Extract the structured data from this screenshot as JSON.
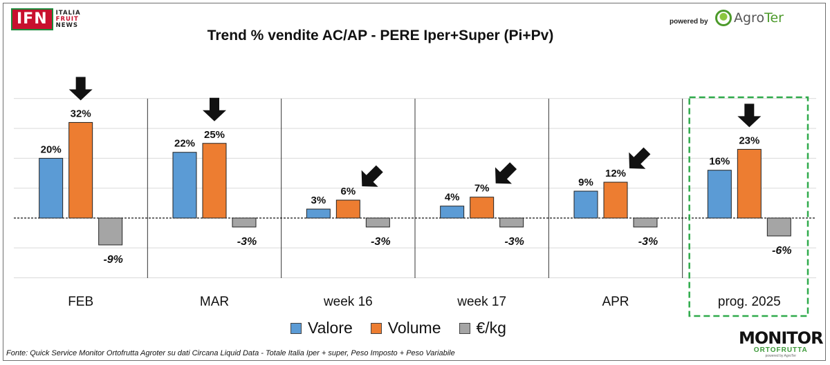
{
  "header": {
    "ifn_badge": "IFN",
    "ifn_line1": "ITALIA",
    "ifn_line2": "FRUIT",
    "ifn_line3": "NEWS",
    "powered_by": "powered by",
    "agroter_a": "Agro",
    "agroter_b": "Ter"
  },
  "footer": {
    "source": "Fonte: Quick Service Monitor Ortofrutta Agroter su dati Circana Liquid Data - Totale Italia Iper + super, Peso Imposto + Peso Variabile",
    "monitor_big": "MONITOR",
    "monitor_small": "ORTOFRUTTA",
    "monitor_tiny": "powered by AgroTer"
  },
  "chart_data": {
    "type": "bar",
    "title": "Trend % vendite AC/AP - PERE  Iper+Super (Pi+Pv)",
    "xlabel": "",
    "ylabel": "",
    "ylim": [
      -20,
      40
    ],
    "grid": true,
    "legend_position": "bottom",
    "categories": [
      "FEB",
      "MAR",
      "week 16",
      "week 17",
      "APR",
      "prog. 2025"
    ],
    "series": [
      {
        "name": "Valore",
        "color": "#5b9bd5",
        "values": [
          20,
          22,
          3,
          4,
          9,
          16
        ],
        "labels": [
          "20%",
          "22%",
          "3%",
          "4%",
          "9%",
          "16%"
        ]
      },
      {
        "name": "Volume",
        "color": "#ed7d31",
        "values": [
          32,
          25,
          6,
          7,
          12,
          23
        ],
        "labels": [
          "32%",
          "25%",
          "6%",
          "7%",
          "12%",
          "23%"
        ]
      },
      {
        "name": "€/kg",
        "color": "#a5a5a5",
        "values": [
          -9,
          -3,
          -3,
          -3,
          -3,
          -6
        ],
        "labels": [
          "-9%",
          "-3%",
          "-3%",
          "-3%",
          "-3%",
          "-6%"
        ]
      }
    ],
    "annotations": {
      "arrow_direction": [
        "down",
        "down",
        "down-left",
        "down-left",
        "down-left",
        "down"
      ],
      "highlighted_category": "prog. 2025",
      "highlight_color": "#2eaa4a"
    }
  }
}
